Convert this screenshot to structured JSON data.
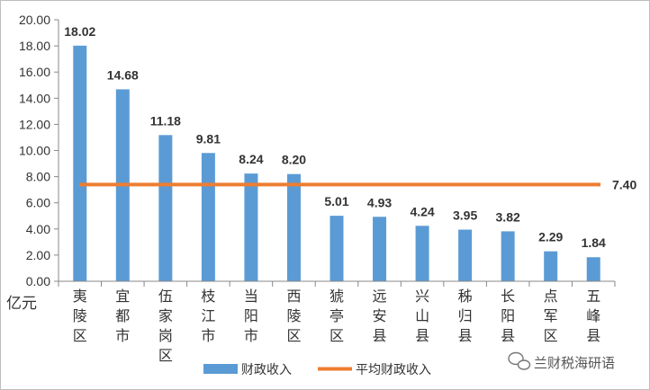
{
  "chart_data": {
    "type": "bar",
    "categories": [
      "夷陵区",
      "宜都市",
      "伍家岗区",
      "枝江市",
      "当阳市",
      "西陵区",
      "猇亭区",
      "远安县",
      "兴山县",
      "秭归县",
      "长阳县",
      "点军区",
      "五峰县"
    ],
    "series": [
      {
        "name": "财政收入",
        "type": "bar",
        "color": "#5b9bd5",
        "values": [
          18.02,
          14.68,
          11.18,
          9.81,
          8.24,
          8.2,
          5.01,
          4.93,
          4.24,
          3.95,
          3.82,
          2.29,
          1.84
        ],
        "labels": [
          "18.02",
          "14.68",
          "11.18",
          "9.81",
          "8.24",
          "8.20",
          "5.01",
          "4.93",
          "4.24",
          "3.95",
          "3.82",
          "2.29",
          "1.84"
        ]
      },
      {
        "name": "平均财政收入",
        "type": "line",
        "color": "#ed7d31",
        "value": 7.4,
        "label": "7.40"
      }
    ],
    "yunit": "亿元",
    "ylim": [
      0,
      20
    ],
    "yticks": [
      "0.00",
      "2.00",
      "4.00",
      "6.00",
      "8.00",
      "10.00",
      "12.00",
      "14.00",
      "16.00",
      "18.00",
      "20.00"
    ],
    "grid": false,
    "legend_position": "bottom-center"
  },
  "watermark": {
    "text": "兰财税海研语",
    "icon": "wechat-icon"
  }
}
